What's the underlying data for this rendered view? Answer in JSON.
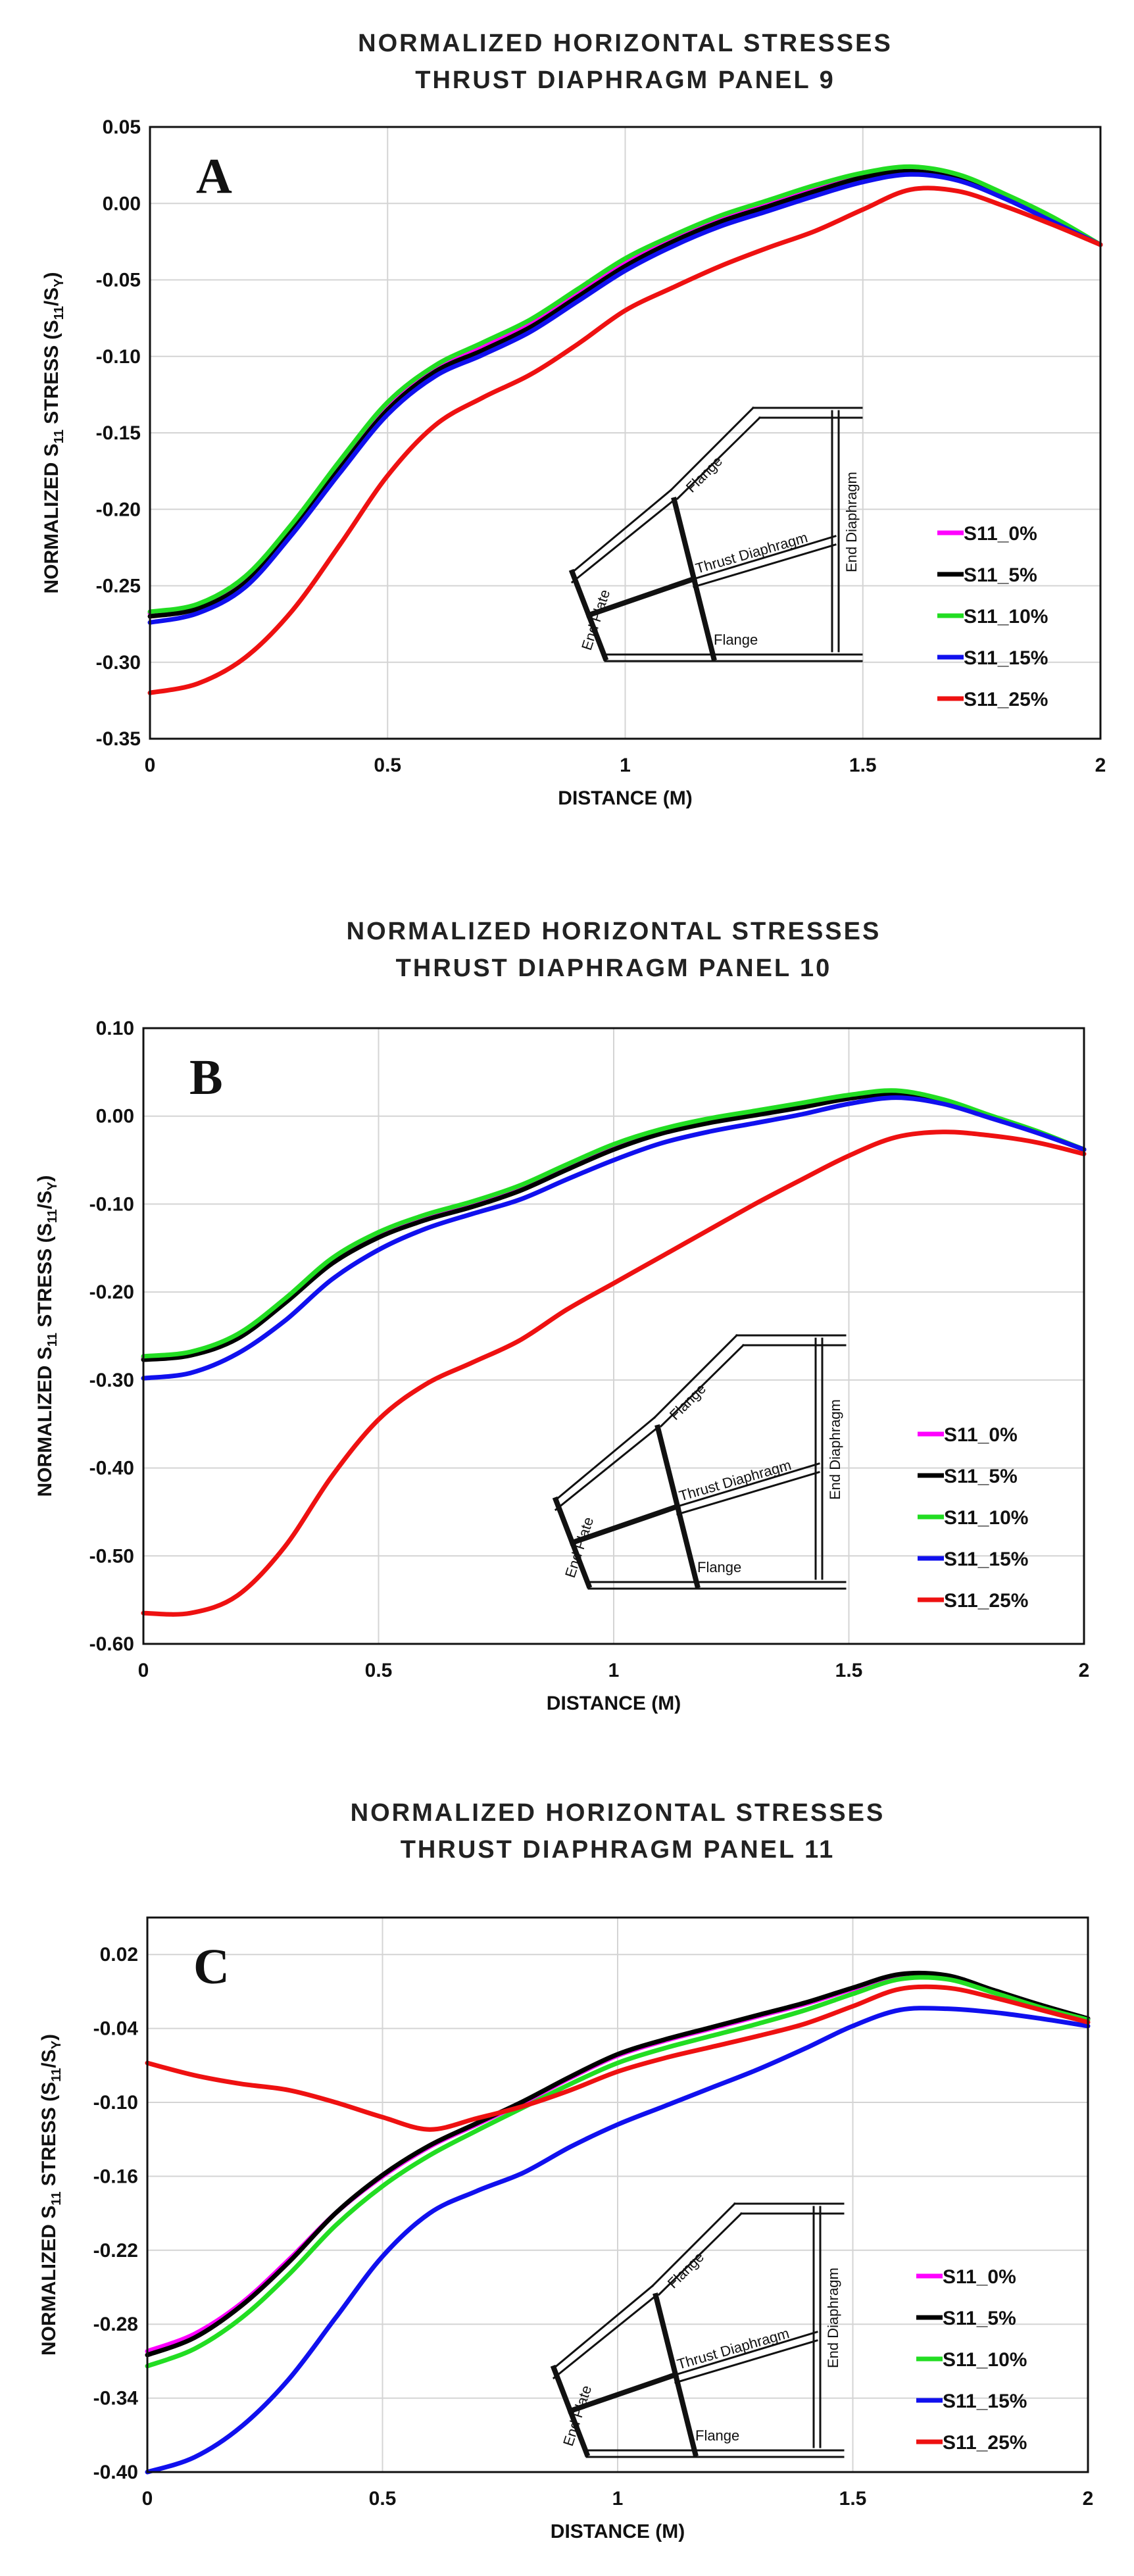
{
  "chart_data": [
    {
      "type": "line",
      "title": [
        "NORMALIZED HORIZONTAL STRESSES",
        "THRUST DIAPHRAGM PANEL 9"
      ],
      "panel_letter": "A",
      "xlabel": "DISTANCE (M)",
      "ylabel": {
        "pre": "NORMALIZED S",
        "sub1": "11",
        "mid": " STRESS (S",
        "sub2": "11",
        "sep": "/S",
        "sub3": "Y",
        "post": ")"
      },
      "xlim": [
        0,
        2
      ],
      "ylim": [
        -0.35,
        0.05
      ],
      "xticks": [
        0,
        0.5,
        1,
        1.5,
        2
      ],
      "xtick_labels": [
        "0",
        "0.5",
        "1",
        "1.5",
        "2"
      ],
      "yticks": [
        -0.35,
        -0.3,
        -0.25,
        -0.2,
        -0.15,
        -0.1,
        -0.05,
        0.0,
        0.05
      ],
      "ytick_labels": [
        "-0.35",
        "-0.30",
        "-0.25",
        "-0.20",
        "-0.15",
        "-0.10",
        "-0.05",
        "0.00",
        "0.05"
      ],
      "grid": true,
      "legend_position": "right",
      "inset_labels": {
        "flange_top": "Flange",
        "thrust": "Thrust Diaphragm",
        "end_diaphragm": "End Diaphragm",
        "end_plate": "End Plate",
        "flange_bottom": "Flange"
      },
      "x": [
        0,
        0.1,
        0.2,
        0.3,
        0.4,
        0.5,
        0.6,
        0.7,
        0.8,
        0.9,
        1.0,
        1.1,
        1.2,
        1.3,
        1.4,
        1.5,
        1.6,
        1.7,
        1.8,
        1.9,
        2.0
      ],
      "series": [
        {
          "name": "S11_0%",
          "color": "#ff00ff",
          "values": [
            -0.268,
            -0.263,
            -0.245,
            -0.21,
            -0.17,
            -0.132,
            -0.108,
            -0.093,
            -0.078,
            -0.058,
            -0.038,
            -0.023,
            -0.01,
            0.0,
            0.01,
            0.019,
            0.023,
            0.018,
            0.005,
            -0.01,
            -0.027
          ]
        },
        {
          "name": "S11_5%",
          "color": "#000000",
          "values": [
            -0.27,
            -0.265,
            -0.248,
            -0.213,
            -0.173,
            -0.135,
            -0.11,
            -0.096,
            -0.081,
            -0.061,
            -0.041,
            -0.025,
            -0.012,
            -0.002,
            0.008,
            0.017,
            0.021,
            0.016,
            0.004,
            -0.011,
            -0.027
          ]
        },
        {
          "name": "S11_10%",
          "color": "#22dd22",
          "values": [
            -0.267,
            -0.262,
            -0.244,
            -0.209,
            -0.168,
            -0.13,
            -0.106,
            -0.091,
            -0.076,
            -0.056,
            -0.036,
            -0.021,
            -0.008,
            0.002,
            0.012,
            0.02,
            0.024,
            0.019,
            0.006,
            -0.009,
            -0.027
          ]
        },
        {
          "name": "S11_15%",
          "color": "#1010ee",
          "values": [
            -0.274,
            -0.268,
            -0.251,
            -0.216,
            -0.176,
            -0.138,
            -0.113,
            -0.099,
            -0.084,
            -0.064,
            -0.044,
            -0.028,
            -0.015,
            -0.005,
            0.005,
            0.014,
            0.019,
            0.015,
            0.003,
            -0.012,
            -0.027
          ]
        },
        {
          "name": "S11_25%",
          "color": "#ee1111",
          "values": [
            -0.32,
            -0.314,
            -0.297,
            -0.266,
            -0.223,
            -0.178,
            -0.145,
            -0.127,
            -0.112,
            -0.092,
            -0.07,
            -0.055,
            -0.041,
            -0.029,
            -0.018,
            -0.004,
            0.009,
            0.008,
            -0.002,
            -0.014,
            -0.027
          ]
        }
      ]
    },
    {
      "type": "line",
      "title": [
        "NORMALIZED HORIZONTAL STRESSES",
        "THRUST DIAPHRAGM PANEL 10"
      ],
      "panel_letter": "B",
      "xlabel": "DISTANCE (M)",
      "ylabel": {
        "pre": "NORMALIZED S",
        "sub1": "11",
        "mid": " STRESS (S",
        "sub2": "11",
        "sep": "/S",
        "sub3": "Y",
        "post": ")"
      },
      "xlim": [
        0,
        2
      ],
      "ylim": [
        -0.6,
        0.1
      ],
      "xticks": [
        0,
        0.5,
        1,
        1.5,
        2
      ],
      "xtick_labels": [
        "0",
        "0.5",
        "1",
        "1.5",
        "2"
      ],
      "yticks": [
        -0.6,
        -0.5,
        -0.4,
        -0.3,
        -0.2,
        -0.1,
        0.0,
        0.1
      ],
      "ytick_labels": [
        "-0.60",
        "-0.50",
        "-0.40",
        "-0.30",
        "-0.20",
        "-0.10",
        "0.00",
        "0.10"
      ],
      "grid": true,
      "legend_position": "right",
      "inset_labels": {
        "flange_top": "Flange",
        "thrust": "Thrust Diaphragm",
        "end_diaphragm": "End Diaphragm",
        "end_plate": "End Plate",
        "flange_bottom": "Flange"
      },
      "x": [
        0,
        0.1,
        0.2,
        0.3,
        0.4,
        0.5,
        0.6,
        0.7,
        0.8,
        0.9,
        1.0,
        1.1,
        1.2,
        1.3,
        1.4,
        1.5,
        1.6,
        1.7,
        1.8,
        1.9,
        2.0
      ],
      "series": [
        {
          "name": "S11_0%",
          "color": "#ff00ff",
          "values": [
            -0.275,
            -0.27,
            -0.25,
            -0.21,
            -0.165,
            -0.135,
            -0.115,
            -0.1,
            -0.082,
            -0.058,
            -0.035,
            -0.018,
            -0.006,
            0.003,
            0.012,
            0.022,
            0.027,
            0.018,
            0.0,
            -0.018,
            -0.038
          ]
        },
        {
          "name": "S11_5%",
          "color": "#000000",
          "values": [
            -0.277,
            -0.272,
            -0.253,
            -0.213,
            -0.168,
            -0.138,
            -0.118,
            -0.103,
            -0.085,
            -0.061,
            -0.038,
            -0.02,
            -0.008,
            0.001,
            0.01,
            0.02,
            0.025,
            0.017,
            0.0,
            -0.018,
            -0.038
          ]
        },
        {
          "name": "S11_10%",
          "color": "#22dd22",
          "values": [
            -0.273,
            -0.268,
            -0.248,
            -0.208,
            -0.162,
            -0.132,
            -0.112,
            -0.097,
            -0.079,
            -0.055,
            -0.032,
            -0.015,
            -0.003,
            0.006,
            0.015,
            0.024,
            0.029,
            0.019,
            0.001,
            -0.017,
            -0.038
          ]
        },
        {
          "name": "S11_15%",
          "color": "#1010ee",
          "values": [
            -0.298,
            -0.292,
            -0.27,
            -0.233,
            -0.186,
            -0.152,
            -0.128,
            -0.111,
            -0.095,
            -0.072,
            -0.05,
            -0.031,
            -0.018,
            -0.008,
            0.002,
            0.014,
            0.021,
            0.014,
            -0.002,
            -0.019,
            -0.038
          ]
        },
        {
          "name": "S11_25%",
          "color": "#ee1111",
          "values": [
            -0.565,
            -0.565,
            -0.545,
            -0.49,
            -0.41,
            -0.345,
            -0.305,
            -0.28,
            -0.255,
            -0.22,
            -0.19,
            -0.16,
            -0.13,
            -0.1,
            -0.072,
            -0.045,
            -0.024,
            -0.018,
            -0.022,
            -0.03,
            -0.043
          ]
        }
      ]
    },
    {
      "type": "line",
      "title": [
        "NORMALIZED HORIZONTAL STRESSES",
        "THRUST DIAPHRAGM PANEL 11"
      ],
      "panel_letter": "C",
      "xlabel": "DISTANCE (M)",
      "ylabel": {
        "pre": "NORMALIZED S",
        "sub1": "11",
        "mid": " STRESS (S",
        "sub2": "11",
        "sep": "/S",
        "sub3": "Y",
        "post": ")"
      },
      "xlim": [
        0,
        2
      ],
      "ylim": [
        -0.4,
        0.05
      ],
      "xticks": [
        0,
        0.5,
        1,
        1.5,
        2
      ],
      "xtick_labels": [
        "0",
        "0.5",
        "1",
        "1.5",
        "2"
      ],
      "yticks": [
        -0.4,
        -0.34,
        -0.28,
        -0.22,
        -0.16,
        -0.1,
        -0.04,
        0.02
      ],
      "ytick_labels": [
        "-0.40",
        "-0.34",
        "-0.28",
        "-0.22",
        "-0.16",
        "-0.10",
        "-0.04",
        "0.02"
      ],
      "grid": true,
      "legend_position": "right",
      "inset_labels": {
        "flange_top": "Flange",
        "thrust": "Thrust Diaphragm",
        "end_diaphragm": "End Diaphragm",
        "end_plate": "End Plate",
        "flange_bottom": "Flange"
      },
      "x": [
        0,
        0.1,
        0.2,
        0.3,
        0.4,
        0.5,
        0.6,
        0.7,
        0.8,
        0.9,
        1.0,
        1.1,
        1.2,
        1.3,
        1.4,
        1.5,
        1.6,
        1.7,
        1.8,
        1.9,
        2.0
      ],
      "series": [
        {
          "name": "S11_0%",
          "color": "#ff00ff",
          "values": [
            -0.302,
            -0.288,
            -0.263,
            -0.228,
            -0.19,
            -0.16,
            -0.136,
            -0.118,
            -0.1,
            -0.08,
            -0.062,
            -0.05,
            -0.04,
            -0.03,
            -0.02,
            -0.008,
            0.003,
            0.002,
            -0.01,
            -0.022,
            -0.032
          ]
        },
        {
          "name": "S11_5%",
          "color": "#000000",
          "values": [
            -0.305,
            -0.291,
            -0.265,
            -0.23,
            -0.19,
            -0.159,
            -0.135,
            -0.117,
            -0.099,
            -0.079,
            -0.061,
            -0.049,
            -0.039,
            -0.029,
            -0.019,
            -0.007,
            0.004,
            0.003,
            -0.009,
            -0.021,
            -0.032
          ]
        },
        {
          "name": "S11_10%",
          "color": "#22dd22",
          "values": [
            -0.314,
            -0.3,
            -0.275,
            -0.24,
            -0.2,
            -0.168,
            -0.143,
            -0.123,
            -0.104,
            -0.085,
            -0.068,
            -0.056,
            -0.046,
            -0.036,
            -0.025,
            -0.012,
            0.0,
            0.0,
            -0.011,
            -0.023,
            -0.033
          ]
        },
        {
          "name": "S11_15%",
          "color": "#1010ee",
          "values": [
            -0.4,
            -0.388,
            -0.363,
            -0.325,
            -0.275,
            -0.225,
            -0.19,
            -0.172,
            -0.157,
            -0.136,
            -0.118,
            -0.103,
            -0.088,
            -0.073,
            -0.056,
            -0.038,
            -0.025,
            -0.024,
            -0.027,
            -0.032,
            -0.038
          ]
        },
        {
          "name": "S11_25%",
          "color": "#ee1111",
          "values": [
            -0.068,
            -0.078,
            -0.085,
            -0.09,
            -0.1,
            -0.112,
            -0.122,
            -0.113,
            -0.103,
            -0.09,
            -0.075,
            -0.064,
            -0.055,
            -0.046,
            -0.036,
            -0.022,
            -0.008,
            -0.007,
            -0.015,
            -0.025,
            -0.035
          ]
        }
      ]
    }
  ]
}
